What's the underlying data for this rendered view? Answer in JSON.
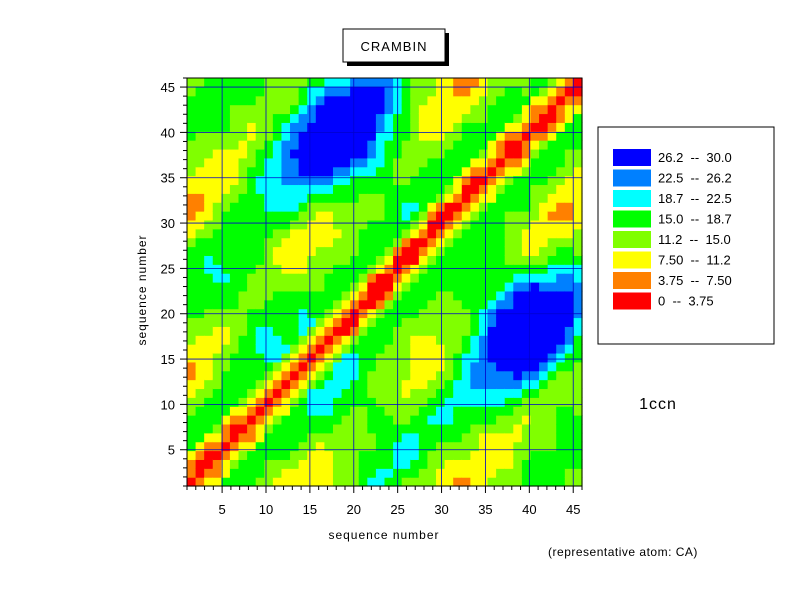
{
  "chart_data": {
    "type": "heatmap",
    "title": "CRAMBIN",
    "xlabel": "sequence number",
    "ylabel": "sequence number",
    "xlim": [
      1,
      46
    ],
    "ylim": [
      1,
      46
    ],
    "x_ticks": [
      5,
      10,
      15,
      20,
      25,
      30,
      35,
      40,
      45
    ],
    "y_ticks": [
      5,
      10,
      15,
      20,
      25,
      30,
      35,
      40,
      45
    ],
    "grid": true,
    "legend_position": "right",
    "legend": [
      {
        "label": "26.2  --  30.0",
        "color": "#0000ff",
        "min": 26.2,
        "max": 30.0
      },
      {
        "label": "22.5  --  26.2",
        "color": "#0080ff",
        "min": 22.5,
        "max": 26.2
      },
      {
        "label": "18.7  --  22.5",
        "color": "#00ffff",
        "min": 18.7,
        "max": 22.5
      },
      {
        "label": "15.0  --  18.7",
        "color": "#00ff00",
        "min": 15.0,
        "max": 18.7
      },
      {
        "label": "11.2  --  15.0",
        "color": "#80ff00",
        "min": 11.2,
        "max": 15.0
      },
      {
        "label": "7.50  --  11.2",
        "color": "#ffff00",
        "min": 7.5,
        "max": 11.2
      },
      {
        "label": "3.75  --  7.50",
        "color": "#ff8000",
        "min": 3.75,
        "max": 7.5
      },
      {
        "label": "0  --  3.75",
        "color": "#ff0000",
        "min": 0,
        "max": 3.75
      }
    ],
    "annotations": {
      "pdb_id": "1ccn",
      "note": "(representative atom: CA)"
    }
  }
}
